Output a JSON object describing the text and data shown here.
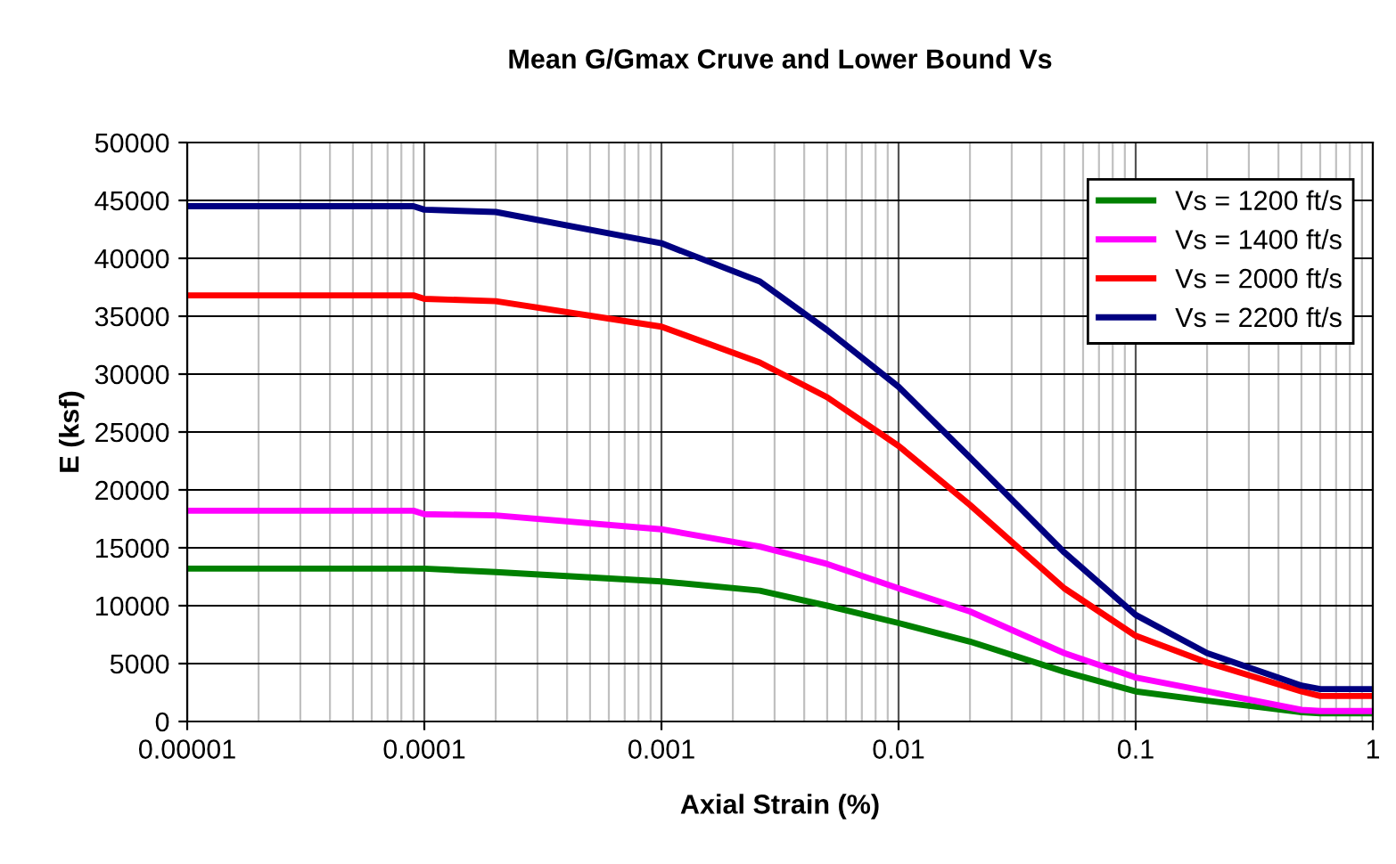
{
  "chart_data": {
    "type": "line",
    "title": "Mean G/Gmax Cruve and Lower Bound Vs",
    "xlabel": "Axial Strain (%)",
    "ylabel": "E (ksf)",
    "log": "x",
    "xlim": [
      1e-05,
      1
    ],
    "xticks": [
      {
        "value": 1e-05,
        "label": "0.00001"
      },
      {
        "value": 0.0001,
        "label": "0.0001"
      },
      {
        "value": 0.001,
        "label": "0.001"
      },
      {
        "value": 0.01,
        "label": "0.01"
      },
      {
        "value": 0.1,
        "label": "0.1"
      },
      {
        "value": 1,
        "label": "1"
      }
    ],
    "ylim": [
      0,
      50000
    ],
    "yticks": [
      0,
      5000,
      10000,
      15000,
      20000,
      25000,
      30000,
      35000,
      40000,
      45000,
      50000
    ],
    "grid": true,
    "legend": "top right",
    "marker": "none",
    "line_style": "solid",
    "x": [
      1e-05,
      9e-05,
      0.0001,
      0.0002,
      0.001,
      0.0026,
      0.005,
      0.01,
      0.02,
      0.05,
      0.1,
      0.2,
      0.5,
      0.6,
      1
    ],
    "series": [
      {
        "name": "Vs = 1200 ft/s",
        "color": "#008000",
        "values": [
          13200,
          13200,
          13200,
          12900,
          12100,
          11300,
          10000,
          8500,
          6900,
          4300,
          2600,
          1800,
          800,
          700,
          700
        ]
      },
      {
        "name": "Vs = 1400 ft/s",
        "color": "#ff00ff",
        "values": [
          18200,
          18200,
          17900,
          17800,
          16600,
          15100,
          13600,
          11500,
          9500,
          5900,
          3800,
          2600,
          1000,
          900,
          900
        ]
      },
      {
        "name": "Vs = 2000 ft/s",
        "color": "#ff0000",
        "values": [
          36800,
          36800,
          36500,
          36300,
          34100,
          31000,
          28000,
          23800,
          18700,
          11500,
          7400,
          5100,
          2600,
          2200,
          2200
        ]
      },
      {
        "name": "Vs = 2200 ft/s",
        "color": "#000080",
        "values": [
          44500,
          44500,
          44200,
          44000,
          41300,
          38000,
          33800,
          28900,
          22800,
          14600,
          9200,
          5900,
          3100,
          2800,
          2800
        ]
      }
    ]
  }
}
